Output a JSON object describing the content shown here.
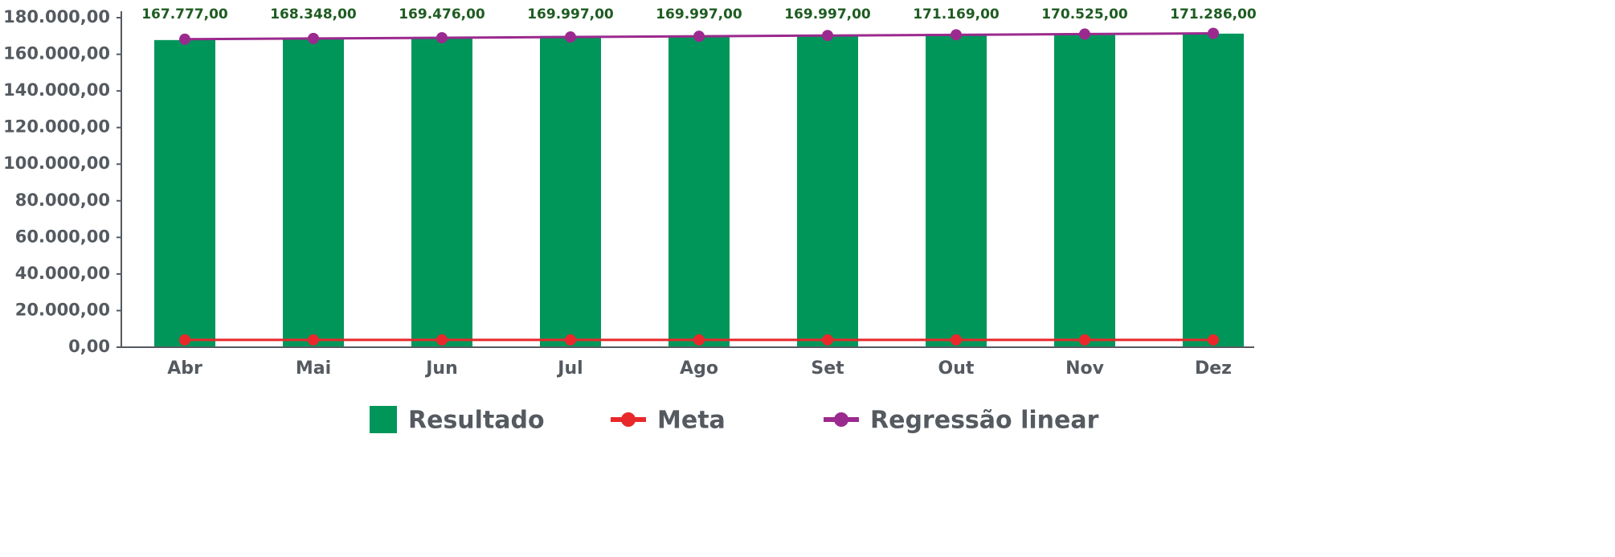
{
  "chart_data": {
    "type": "bar",
    "categories": [
      "Abr",
      "Mai",
      "Jun",
      "Jul",
      "Ago",
      "Set",
      "Out",
      "Nov",
      "Dez"
    ],
    "series": [
      {
        "name": "Resultado",
        "type": "bar",
        "color": "#00965a",
        "values": [
          167777,
          168348,
          169476,
          169997,
          169997,
          169997,
          171169,
          170525,
          171286
        ],
        "value_labels": [
          "167.777,00",
          "168.348,00",
          "169.476,00",
          "169.997,00",
          "169.997,00",
          "169.997,00",
          "171.169,00",
          "170.525,00",
          "171.286,00"
        ]
      },
      {
        "name": "Meta",
        "type": "line",
        "color": "#e8282b",
        "values": [
          4000,
          4000,
          4000,
          4000,
          4000,
          4000,
          4000,
          4000,
          4000
        ]
      },
      {
        "name": "Regressão linear",
        "type": "line",
        "color": "#9b2a8e",
        "values": [
          168245,
          168644,
          169043,
          169442,
          169841,
          170240,
          170639,
          171038,
          171437
        ]
      }
    ],
    "ylim": [
      0,
      180000
    ],
    "yticks": [
      {
        "value": 0,
        "label": "0,00"
      },
      {
        "value": 20000,
        "label": "20.000,00"
      },
      {
        "value": 40000,
        "label": "40.000,00"
      },
      {
        "value": 60000,
        "label": "60.000,00"
      },
      {
        "value": 80000,
        "label": "80.000,00"
      },
      {
        "value": 100000,
        "label": "100.000,00"
      },
      {
        "value": 120000,
        "label": "120.000,00"
      },
      {
        "value": 140000,
        "label": "140.000,00"
      },
      {
        "value": 160000,
        "label": "160.000,00"
      },
      {
        "value": 180000,
        "label": "180.000,00"
      }
    ],
    "grid": false,
    "legend": "bottom"
  }
}
